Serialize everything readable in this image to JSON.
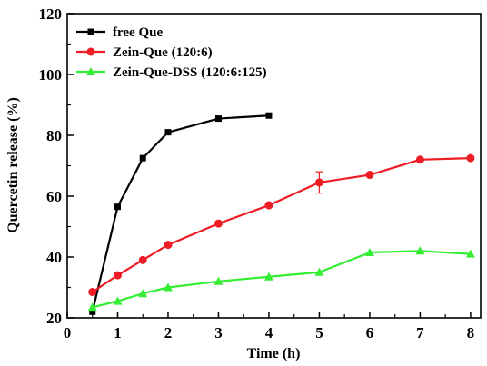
{
  "chart_data": {
    "type": "line",
    "xlabel": "Time (h)",
    "ylabel": "Quercetin release (%)",
    "xlim": [
      0,
      8.2
    ],
    "ylim": [
      20,
      120
    ],
    "x_ticks": [
      0,
      1,
      2,
      3,
      4,
      5,
      6,
      7,
      8
    ],
    "y_ticks": [
      20,
      40,
      60,
      80,
      100,
      120
    ],
    "legend_position": "top-left",
    "series": [
      {
        "name": "free Que",
        "color": "#000000",
        "marker": "square",
        "x": [
          0.5,
          1,
          1.5,
          2,
          3,
          4
        ],
        "y": [
          22,
          56.5,
          72.5,
          81,
          85.5,
          86.5
        ]
      },
      {
        "name": "Zein-Que (120:6)",
        "color": "#ee1c24",
        "marker": "circle",
        "x": [
          0.5,
          1,
          1.5,
          2,
          3,
          4,
          5,
          6,
          7,
          8
        ],
        "y": [
          28.5,
          34,
          39,
          44,
          51,
          57,
          64.5,
          67,
          72,
          72.5
        ],
        "error": [
          0,
          0,
          0,
          0,
          0,
          0,
          3.5,
          0,
          0,
          0
        ]
      },
      {
        "name": "Zein-Que-DSS (120:6:125)",
        "color": "#33ee33",
        "marker": "triangle",
        "x": [
          0.5,
          1,
          1.5,
          2,
          3,
          4,
          5,
          6,
          7,
          8
        ],
        "y": [
          23.5,
          25.5,
          28,
          30,
          32,
          33.5,
          35,
          41.5,
          42,
          41
        ]
      }
    ]
  }
}
